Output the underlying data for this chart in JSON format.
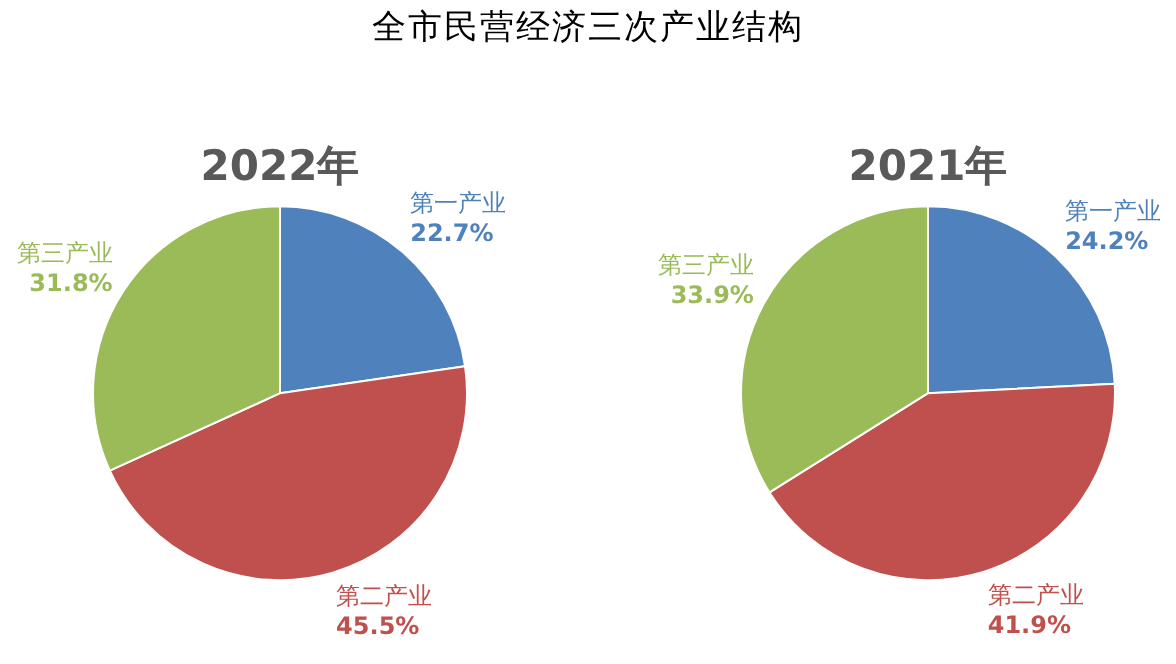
{
  "chart_data": [
    {
      "type": "pie",
      "title": "全市民营经济三次产业结构",
      "subtitle": "2022年",
      "categories": [
        "第一产业",
        "第二产业",
        "第三产业"
      ],
      "values": [
        22.7,
        45.5,
        31.8
      ],
      "value_labels": [
        "22.7%",
        "45.5%",
        "31.8%"
      ],
      "colors": [
        "#4f81bd",
        "#c0504d",
        "#9bbb59"
      ],
      "legend": false
    },
    {
      "type": "pie",
      "title": "2021年",
      "categories": [
        "第一产业",
        "第二产业",
        "第三产业"
      ],
      "values": [
        24.2,
        41.9,
        33.9
      ],
      "value_labels": [
        "24.2%",
        "41.9%",
        "33.9%"
      ],
      "colors": [
        "#4f81bd",
        "#c0504d",
        "#9bbb59"
      ],
      "legend": false
    }
  ]
}
